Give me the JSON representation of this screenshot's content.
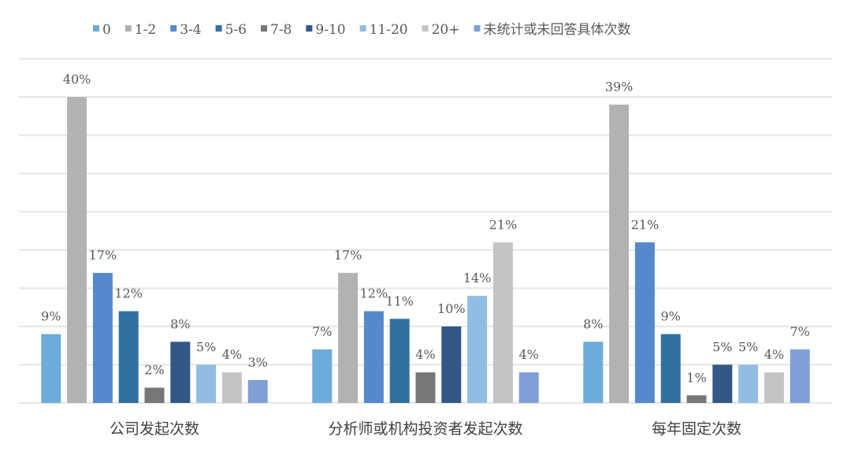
{
  "chart_data": {
    "type": "bar",
    "categories": [
      "公司发起次数",
      "分析师或机构投资者发起次数",
      "每年固定次数"
    ],
    "series": [
      {
        "name": "0",
        "color": "#6DABDA",
        "values": [
          9,
          7,
          8
        ],
        "labels": [
          "9%",
          "7%",
          "8%"
        ]
      },
      {
        "name": "1-2",
        "color": "#B2B2B2",
        "values": [
          40,
          17,
          39
        ],
        "labels": [
          "40%",
          "17%",
          "39%"
        ]
      },
      {
        "name": "3-4",
        "color": "#5689CB",
        "values": [
          17,
          12,
          21
        ],
        "labels": [
          "17%",
          "12%",
          "21%"
        ]
      },
      {
        "name": "5-6",
        "color": "#32719E",
        "values": [
          12,
          11,
          9
        ],
        "labels": [
          "12%",
          "11%",
          "9%"
        ]
      },
      {
        "name": "7-8",
        "color": "#777777",
        "values": [
          2,
          4,
          1
        ],
        "labels": [
          "2%",
          "4%",
          "1%"
        ]
      },
      {
        "name": "9-10",
        "color": "#335888",
        "values": [
          8,
          10,
          5
        ],
        "labels": [
          "8%",
          "10%",
          "5%"
        ]
      },
      {
        "name": "11-20",
        "color": "#92BDE3",
        "values": [
          5,
          14,
          5
        ],
        "labels": [
          "5%",
          "14%",
          "5%"
        ]
      },
      {
        "name": "20+",
        "color": "#C4C4C4",
        "values": [
          4,
          21,
          4
        ],
        "labels": [
          "4%",
          "21%",
          "4%"
        ]
      },
      {
        "name": "未统计或未回答具体次数",
        "color": "#7EA0D6",
        "values": [
          3,
          4,
          7
        ],
        "labels": [
          "3%",
          "4%",
          "7%"
        ]
      }
    ],
    "ylim": [
      0,
      45
    ],
    "y_gridline_step": 5,
    "y_axis_visible": false,
    "grid": true,
    "legend": "top",
    "xlabel": "",
    "ylabel": "",
    "title": ""
  }
}
